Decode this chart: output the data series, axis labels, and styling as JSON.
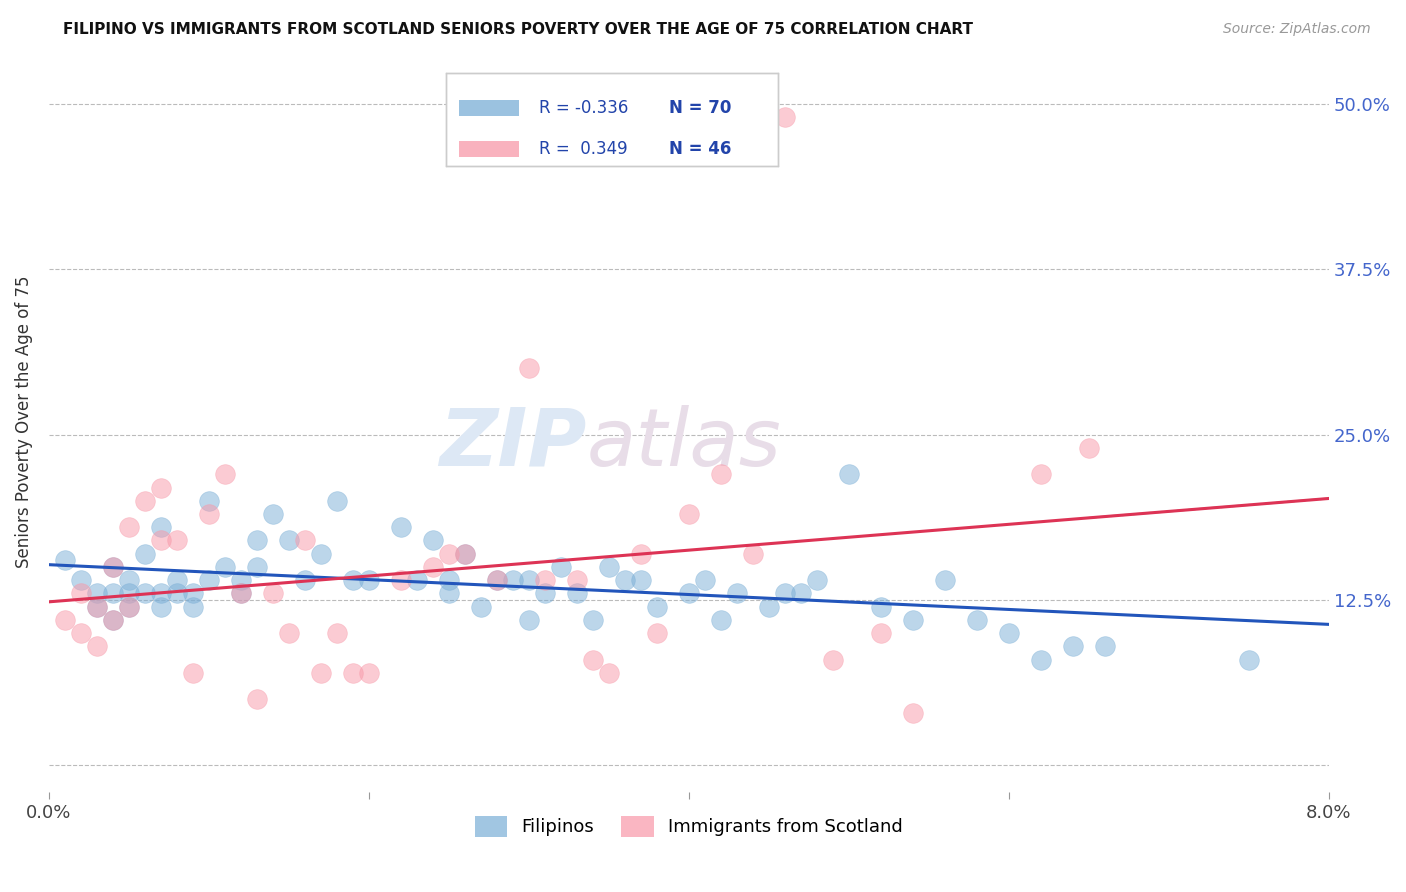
{
  "title": "FILIPINO VS IMMIGRANTS FROM SCOTLAND SENIORS POVERTY OVER THE AGE OF 75 CORRELATION CHART",
  "source": "Source: ZipAtlas.com",
  "ylabel": "Seniors Poverty Over the Age of 75",
  "y_ticks": [
    0.0,
    0.125,
    0.25,
    0.375,
    0.5
  ],
  "y_tick_labels": [
    "",
    "12.5%",
    "25.0%",
    "37.5%",
    "50.0%"
  ],
  "x_ticks": [
    0.0,
    0.02,
    0.04,
    0.06,
    0.08
  ],
  "x_tick_labels": [
    "0.0%",
    "",
    "",
    "",
    "8.0%"
  ],
  "xlim": [
    0.0,
    0.08
  ],
  "ylim": [
    -0.02,
    0.54
  ],
  "legend_label_1": "Filipinos",
  "legend_label_2": "Immigrants from Scotland",
  "R1": -0.336,
  "N1": 70,
  "R2": 0.349,
  "N2": 46,
  "color_blue": "#7aaed6",
  "color_pink": "#f898a8",
  "color_blue_line": "#2255bb",
  "color_pink_line": "#dd3355",
  "filipinos_x": [
    0.001,
    0.002,
    0.003,
    0.003,
    0.004,
    0.004,
    0.004,
    0.005,
    0.005,
    0.005,
    0.006,
    0.006,
    0.007,
    0.007,
    0.007,
    0.008,
    0.008,
    0.009,
    0.009,
    0.01,
    0.01,
    0.011,
    0.012,
    0.012,
    0.013,
    0.013,
    0.014,
    0.015,
    0.016,
    0.017,
    0.018,
    0.019,
    0.02,
    0.022,
    0.023,
    0.024,
    0.025,
    0.025,
    0.026,
    0.027,
    0.028,
    0.029,
    0.03,
    0.03,
    0.031,
    0.032,
    0.033,
    0.034,
    0.035,
    0.036,
    0.037,
    0.038,
    0.04,
    0.041,
    0.042,
    0.043,
    0.045,
    0.046,
    0.047,
    0.048,
    0.05,
    0.052,
    0.054,
    0.056,
    0.058,
    0.06,
    0.062,
    0.064,
    0.066,
    0.075
  ],
  "filipinos_y": [
    0.155,
    0.14,
    0.12,
    0.13,
    0.15,
    0.13,
    0.11,
    0.14,
    0.12,
    0.13,
    0.16,
    0.13,
    0.18,
    0.13,
    0.12,
    0.14,
    0.13,
    0.12,
    0.13,
    0.14,
    0.2,
    0.15,
    0.13,
    0.14,
    0.17,
    0.15,
    0.19,
    0.17,
    0.14,
    0.16,
    0.2,
    0.14,
    0.14,
    0.18,
    0.14,
    0.17,
    0.13,
    0.14,
    0.16,
    0.12,
    0.14,
    0.14,
    0.14,
    0.11,
    0.13,
    0.15,
    0.13,
    0.11,
    0.15,
    0.14,
    0.14,
    0.12,
    0.13,
    0.14,
    0.11,
    0.13,
    0.12,
    0.13,
    0.13,
    0.14,
    0.22,
    0.12,
    0.11,
    0.14,
    0.11,
    0.1,
    0.08,
    0.09,
    0.09,
    0.08
  ],
  "scotland_x": [
    0.001,
    0.002,
    0.002,
    0.003,
    0.003,
    0.004,
    0.004,
    0.005,
    0.005,
    0.006,
    0.007,
    0.007,
    0.008,
    0.009,
    0.01,
    0.011,
    0.012,
    0.013,
    0.014,
    0.015,
    0.016,
    0.017,
    0.018,
    0.019,
    0.02,
    0.022,
    0.024,
    0.025,
    0.026,
    0.028,
    0.03,
    0.031,
    0.033,
    0.034,
    0.035,
    0.037,
    0.038,
    0.04,
    0.042,
    0.044,
    0.046,
    0.049,
    0.052,
    0.054,
    0.062,
    0.065
  ],
  "scotland_y": [
    0.11,
    0.13,
    0.1,
    0.12,
    0.09,
    0.15,
    0.11,
    0.18,
    0.12,
    0.2,
    0.21,
    0.17,
    0.17,
    0.07,
    0.19,
    0.22,
    0.13,
    0.05,
    0.13,
    0.1,
    0.17,
    0.07,
    0.1,
    0.07,
    0.07,
    0.14,
    0.15,
    0.16,
    0.16,
    0.14,
    0.3,
    0.14,
    0.14,
    0.08,
    0.07,
    0.16,
    0.1,
    0.19,
    0.22,
    0.16,
    0.49,
    0.08,
    0.1,
    0.04,
    0.22,
    0.24
  ]
}
